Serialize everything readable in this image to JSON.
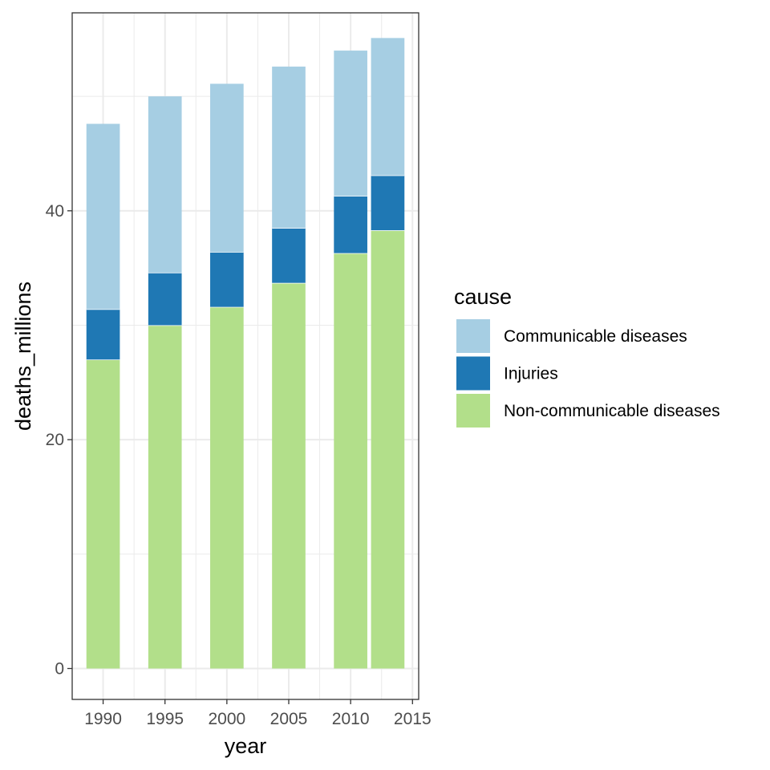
{
  "chart_data": {
    "type": "bar",
    "stacked": true,
    "x": [
      1990,
      1995,
      2000,
      2005,
      2010,
      2013
    ],
    "x_ticks": [
      1990,
      1995,
      2000,
      2005,
      2010,
      2015
    ],
    "xlim": [
      1987.5,
      2015.5
    ],
    "ylim": [
      -2.7,
      57.3
    ],
    "y_ticks": [
      0,
      20,
      40
    ],
    "xlabel": "year",
    "ylabel": "deaths_millions",
    "grid": true,
    "legend": {
      "title": "cause",
      "placement": "right"
    },
    "series": [
      {
        "name": "Non-communicable diseases",
        "color": "#b2df8a",
        "values": [
          27.0,
          30.0,
          31.6,
          33.7,
          36.3,
          38.3
        ]
      },
      {
        "name": "Injuries",
        "color": "#1f78b4",
        "values": [
          4.4,
          4.6,
          4.8,
          4.8,
          5.0,
          4.8
        ]
      },
      {
        "name": "Communicable diseases",
        "color": "#a6cee3",
        "values": [
          16.2,
          15.4,
          14.7,
          14.1,
          12.7,
          12.0
        ]
      }
    ],
    "legend_order": [
      "Communicable diseases",
      "Injuries",
      "Non-communicable diseases"
    ]
  }
}
